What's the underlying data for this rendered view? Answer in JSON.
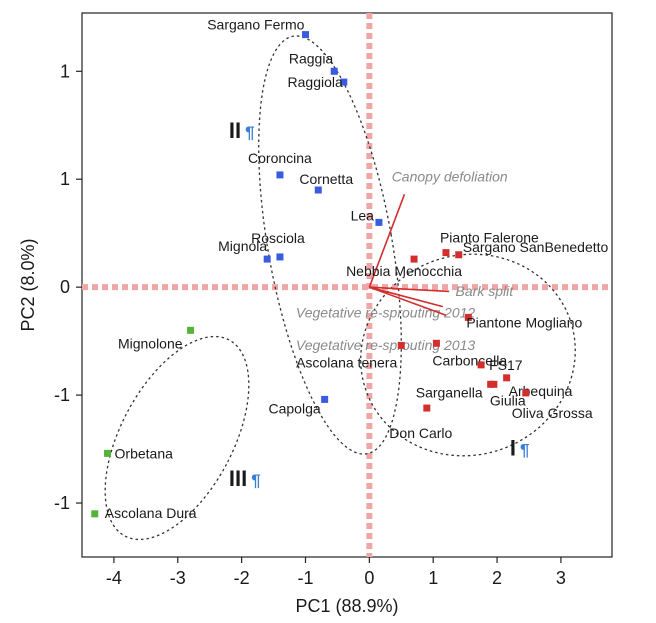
{
  "colors": {
    "group_I": "#d22e2e",
    "group_II": "#3a5be0",
    "group_III": "#55b23a",
    "vectors": "#d22e2e",
    "zero_lines": "#f0a6a6",
    "ellipses": "#333333",
    "pilcrow": "#3a7fd6"
  },
  "chart_data": {
    "type": "scatter",
    "xlabel": "PC1 (88.9%)",
    "ylabel": "PC2 (8.0%)",
    "xlim": [
      -4.5,
      3.8
    ],
    "ylim": [
      -1.25,
      1.27
    ],
    "x_ticks": [
      "-4",
      "-3",
      "-2",
      "-1",
      "0",
      "1",
      "2",
      "3"
    ],
    "y_ticks": [
      {
        "value": 1.0,
        "label": "1"
      },
      {
        "value": 0.5,
        "label": "1"
      },
      {
        "value": 0.0,
        "label": "0"
      },
      {
        "value": -0.5,
        "label": "-1"
      },
      {
        "value": -1.0,
        "label": "-1"
      }
    ],
    "grid": false,
    "zero_lines": true,
    "groups": [
      {
        "id": "I",
        "label": "I",
        "mark": "¶",
        "color_key": "group_I"
      },
      {
        "id": "II",
        "label": "II",
        "mark": "¶",
        "color_key": "group_II"
      },
      {
        "id": "III",
        "label": "III",
        "mark": "¶",
        "color_key": "group_III"
      }
    ],
    "points": [
      {
        "name": "Sargano Fermo",
        "x": -1.0,
        "y": 1.17,
        "group": "II"
      },
      {
        "name": "Raggia",
        "x": -0.55,
        "y": 1.0,
        "group": "II"
      },
      {
        "name": "Raggiola",
        "x": -0.4,
        "y": 0.95,
        "group": "II"
      },
      {
        "name": "Coroncina",
        "x": -1.4,
        "y": 0.52,
        "group": "II"
      },
      {
        "name": "Cornetta",
        "x": -0.8,
        "y": 0.45,
        "group": "II"
      },
      {
        "name": "Lea",
        "x": 0.15,
        "y": 0.3,
        "group": "II"
      },
      {
        "name": "Rosciola",
        "x": -1.4,
        "y": 0.14,
        "group": "II"
      },
      {
        "name": "Mignola",
        "x": -1.6,
        "y": 0.13,
        "group": "II"
      },
      {
        "name": "Capolga",
        "x": -0.7,
        "y": -0.52,
        "group": "II"
      },
      {
        "name": "Pianto Falerone",
        "x": 1.2,
        "y": 0.16,
        "group": "I"
      },
      {
        "name": "Sargano SanBenedetto",
        "x": 1.4,
        "y": 0.15,
        "group": "I"
      },
      {
        "name": "Nebbia Menocchia",
        "x": 0.7,
        "y": 0.13,
        "group": "I"
      },
      {
        "name": "Piantone Mogliano",
        "x": 1.55,
        "y": -0.14,
        "group": "I"
      },
      {
        "name": "Carboncella",
        "x": 1.05,
        "y": -0.26,
        "group": "I"
      },
      {
        "name": "Ascolana tenera",
        "x": 0.5,
        "y": -0.27,
        "group": "I"
      },
      {
        "name": "FS17",
        "x": 1.75,
        "y": -0.36,
        "group": "I"
      },
      {
        "name": "Sarganella",
        "x": 1.9,
        "y": -0.45,
        "group": "I"
      },
      {
        "name": "Arbequina",
        "x": 2.15,
        "y": -0.42,
        "group": "I"
      },
      {
        "name": "Giulia",
        "x": 1.95,
        "y": -0.45,
        "group": "I"
      },
      {
        "name": "Oliva Grossa",
        "x": 2.45,
        "y": -0.49,
        "group": "I"
      },
      {
        "name": "Don Carlo",
        "x": 0.9,
        "y": -0.56,
        "group": "I"
      },
      {
        "name": "Mignolone",
        "x": -2.8,
        "y": -0.2,
        "group": "III"
      },
      {
        "name": "Orbetana",
        "x": -4.1,
        "y": -0.77,
        "group": "III"
      },
      {
        "name": "Ascolana Dura",
        "x": -4.3,
        "y": -1.05,
        "group": "III"
      }
    ],
    "vectors": [
      {
        "name": "Canopy defoliation",
        "x": 0.55,
        "y": 0.43
      },
      {
        "name": "Bark split",
        "x": 1.25,
        "y": -0.02
      },
      {
        "name": "Vegetative re-sprouting 2012",
        "x": 1.15,
        "y": -0.09
      },
      {
        "name": "Vegetative re-sprouting 2013",
        "x": 1.2,
        "y": -0.13
      }
    ]
  }
}
